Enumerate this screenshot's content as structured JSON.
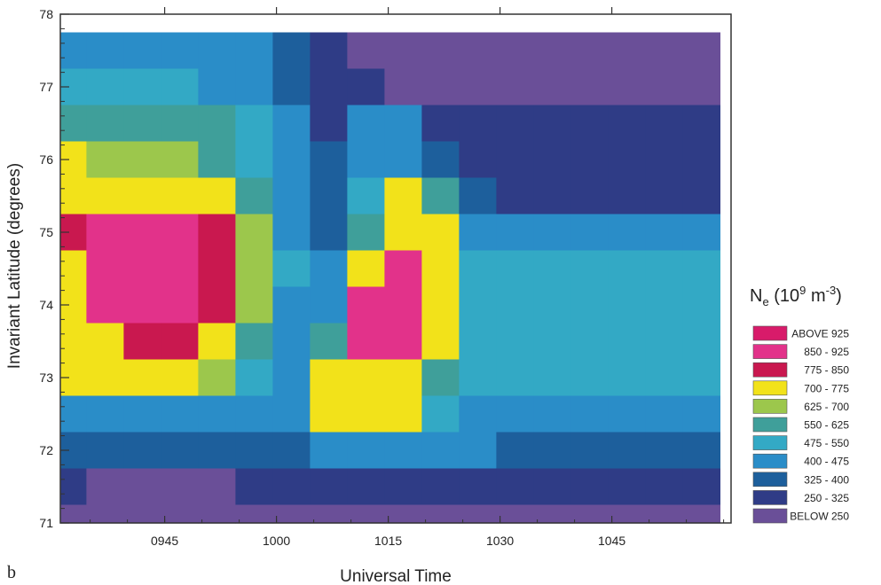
{
  "chart_data": {
    "type": "heatmap",
    "panel_label": "b",
    "xlabel": "Universal Time",
    "ylabel": "Invariant Latitude (degrees)",
    "x_ticks": [
      "0945",
      "1000",
      "1015",
      "1030",
      "1045"
    ],
    "y_ticks": [
      "71",
      "72",
      "73",
      "74",
      "75",
      "76",
      "77",
      "78"
    ],
    "xlim": [
      "0931",
      "1101"
    ],
    "ylim": [
      71,
      78
    ],
    "data_top_latitude": 77.75,
    "legend_title": {
      "base": "N",
      "sub": "e",
      "pre": " (10",
      "sup1": "9",
      "mid": " m",
      "sup2": "-3",
      "post": ")"
    },
    "legend": [
      {
        "label": "ABOVE  925",
        "color": "#d81b6a"
      },
      {
        "label": "850 - 925",
        "color": "#e2328a"
      },
      {
        "label": "775 - 850",
        "color": "#c9184f"
      },
      {
        "label": "700 - 775",
        "color": "#f2e21a"
      },
      {
        "label": "625 - 700",
        "color": "#9cc74c"
      },
      {
        "label": "550 - 625",
        "color": "#3f9f9a"
      },
      {
        "label": "475 - 550",
        "color": "#33a9c5"
      },
      {
        "label": "400 - 475",
        "color": "#2a8dc8"
      },
      {
        "label": "325 - 400",
        "color": "#1d5f9c"
      },
      {
        "label": "250 - 325",
        "color": "#2f3c86"
      },
      {
        "label": "BELOW  250",
        "color": "#6a4f98"
      }
    ],
    "density_grid": {
      "units": "10^9 m^-3",
      "x_times": [
        "0932",
        "0937",
        "0942",
        "0947",
        "0952",
        "0957",
        "1002",
        "1007",
        "1012",
        "1017",
        "1022",
        "1027",
        "1032",
        "1037",
        "1042",
        "1047",
        "1052",
        "1057"
      ],
      "y_latitudes": [
        77.5,
        77,
        76.5,
        76,
        75.5,
        75,
        74.5,
        74,
        73.5,
        73,
        72.5,
        72,
        71.5,
        71
      ],
      "values": [
        [
          450,
          450,
          450,
          450,
          450,
          420,
          340,
          270,
          240,
          230,
          230,
          230,
          230,
          230,
          230,
          230,
          230,
          230
        ],
        [
          500,
          500,
          480,
          480,
          470,
          430,
          360,
          280,
          250,
          240,
          240,
          240,
          240,
          240,
          240,
          240,
          240,
          240
        ],
        [
          580,
          600,
          600,
          580,
          560,
          500,
          400,
          300,
          400,
          440,
          320,
          260,
          250,
          250,
          250,
          250,
          250,
          250
        ],
        [
          700,
          680,
          680,
          660,
          620,
          540,
          420,
          330,
          440,
          460,
          340,
          270,
          260,
          260,
          260,
          260,
          260,
          260
        ],
        [
          730,
          760,
          760,
          740,
          720,
          600,
          450,
          350,
          520,
          740,
          600,
          330,
          280,
          270,
          270,
          270,
          270,
          270
        ],
        [
          780,
          880,
          900,
          860,
          780,
          660,
          470,
          380,
          560,
          760,
          740,
          470,
          440,
          430,
          430,
          420,
          420,
          420
        ],
        [
          760,
          900,
          920,
          900,
          820,
          680,
          480,
          460,
          700,
          880,
          760,
          500,
          500,
          500,
          500,
          500,
          500,
          500
        ],
        [
          760,
          880,
          900,
          880,
          820,
          650,
          470,
          450,
          860,
          900,
          760,
          500,
          500,
          500,
          500,
          500,
          500,
          500
        ],
        [
          730,
          760,
          790,
          790,
          740,
          580,
          460,
          620,
          880,
          880,
          740,
          490,
          500,
          500,
          500,
          500,
          500,
          500
        ],
        [
          700,
          720,
          740,
          730,
          660,
          520,
          440,
          730,
          760,
          750,
          600,
          480,
          480,
          480,
          480,
          480,
          480,
          480
        ],
        [
          470,
          470,
          470,
          470,
          470,
          450,
          420,
          730,
          730,
          720,
          480,
          470,
          470,
          470,
          470,
          470,
          470,
          470
        ],
        [
          330,
          330,
          330,
          330,
          340,
          340,
          360,
          400,
          400,
          400,
          400,
          400,
          390,
          390,
          390,
          390,
          390,
          390
        ],
        [
          260,
          240,
          230,
          230,
          240,
          260,
          270,
          300,
          310,
          310,
          310,
          310,
          310,
          310,
          310,
          310,
          310,
          310
        ],
        [
          220,
          210,
          200,
          200,
          210,
          220,
          220,
          230,
          230,
          230,
          230,
          230,
          240,
          240,
          240,
          240,
          240,
          240
        ]
      ]
    }
  }
}
